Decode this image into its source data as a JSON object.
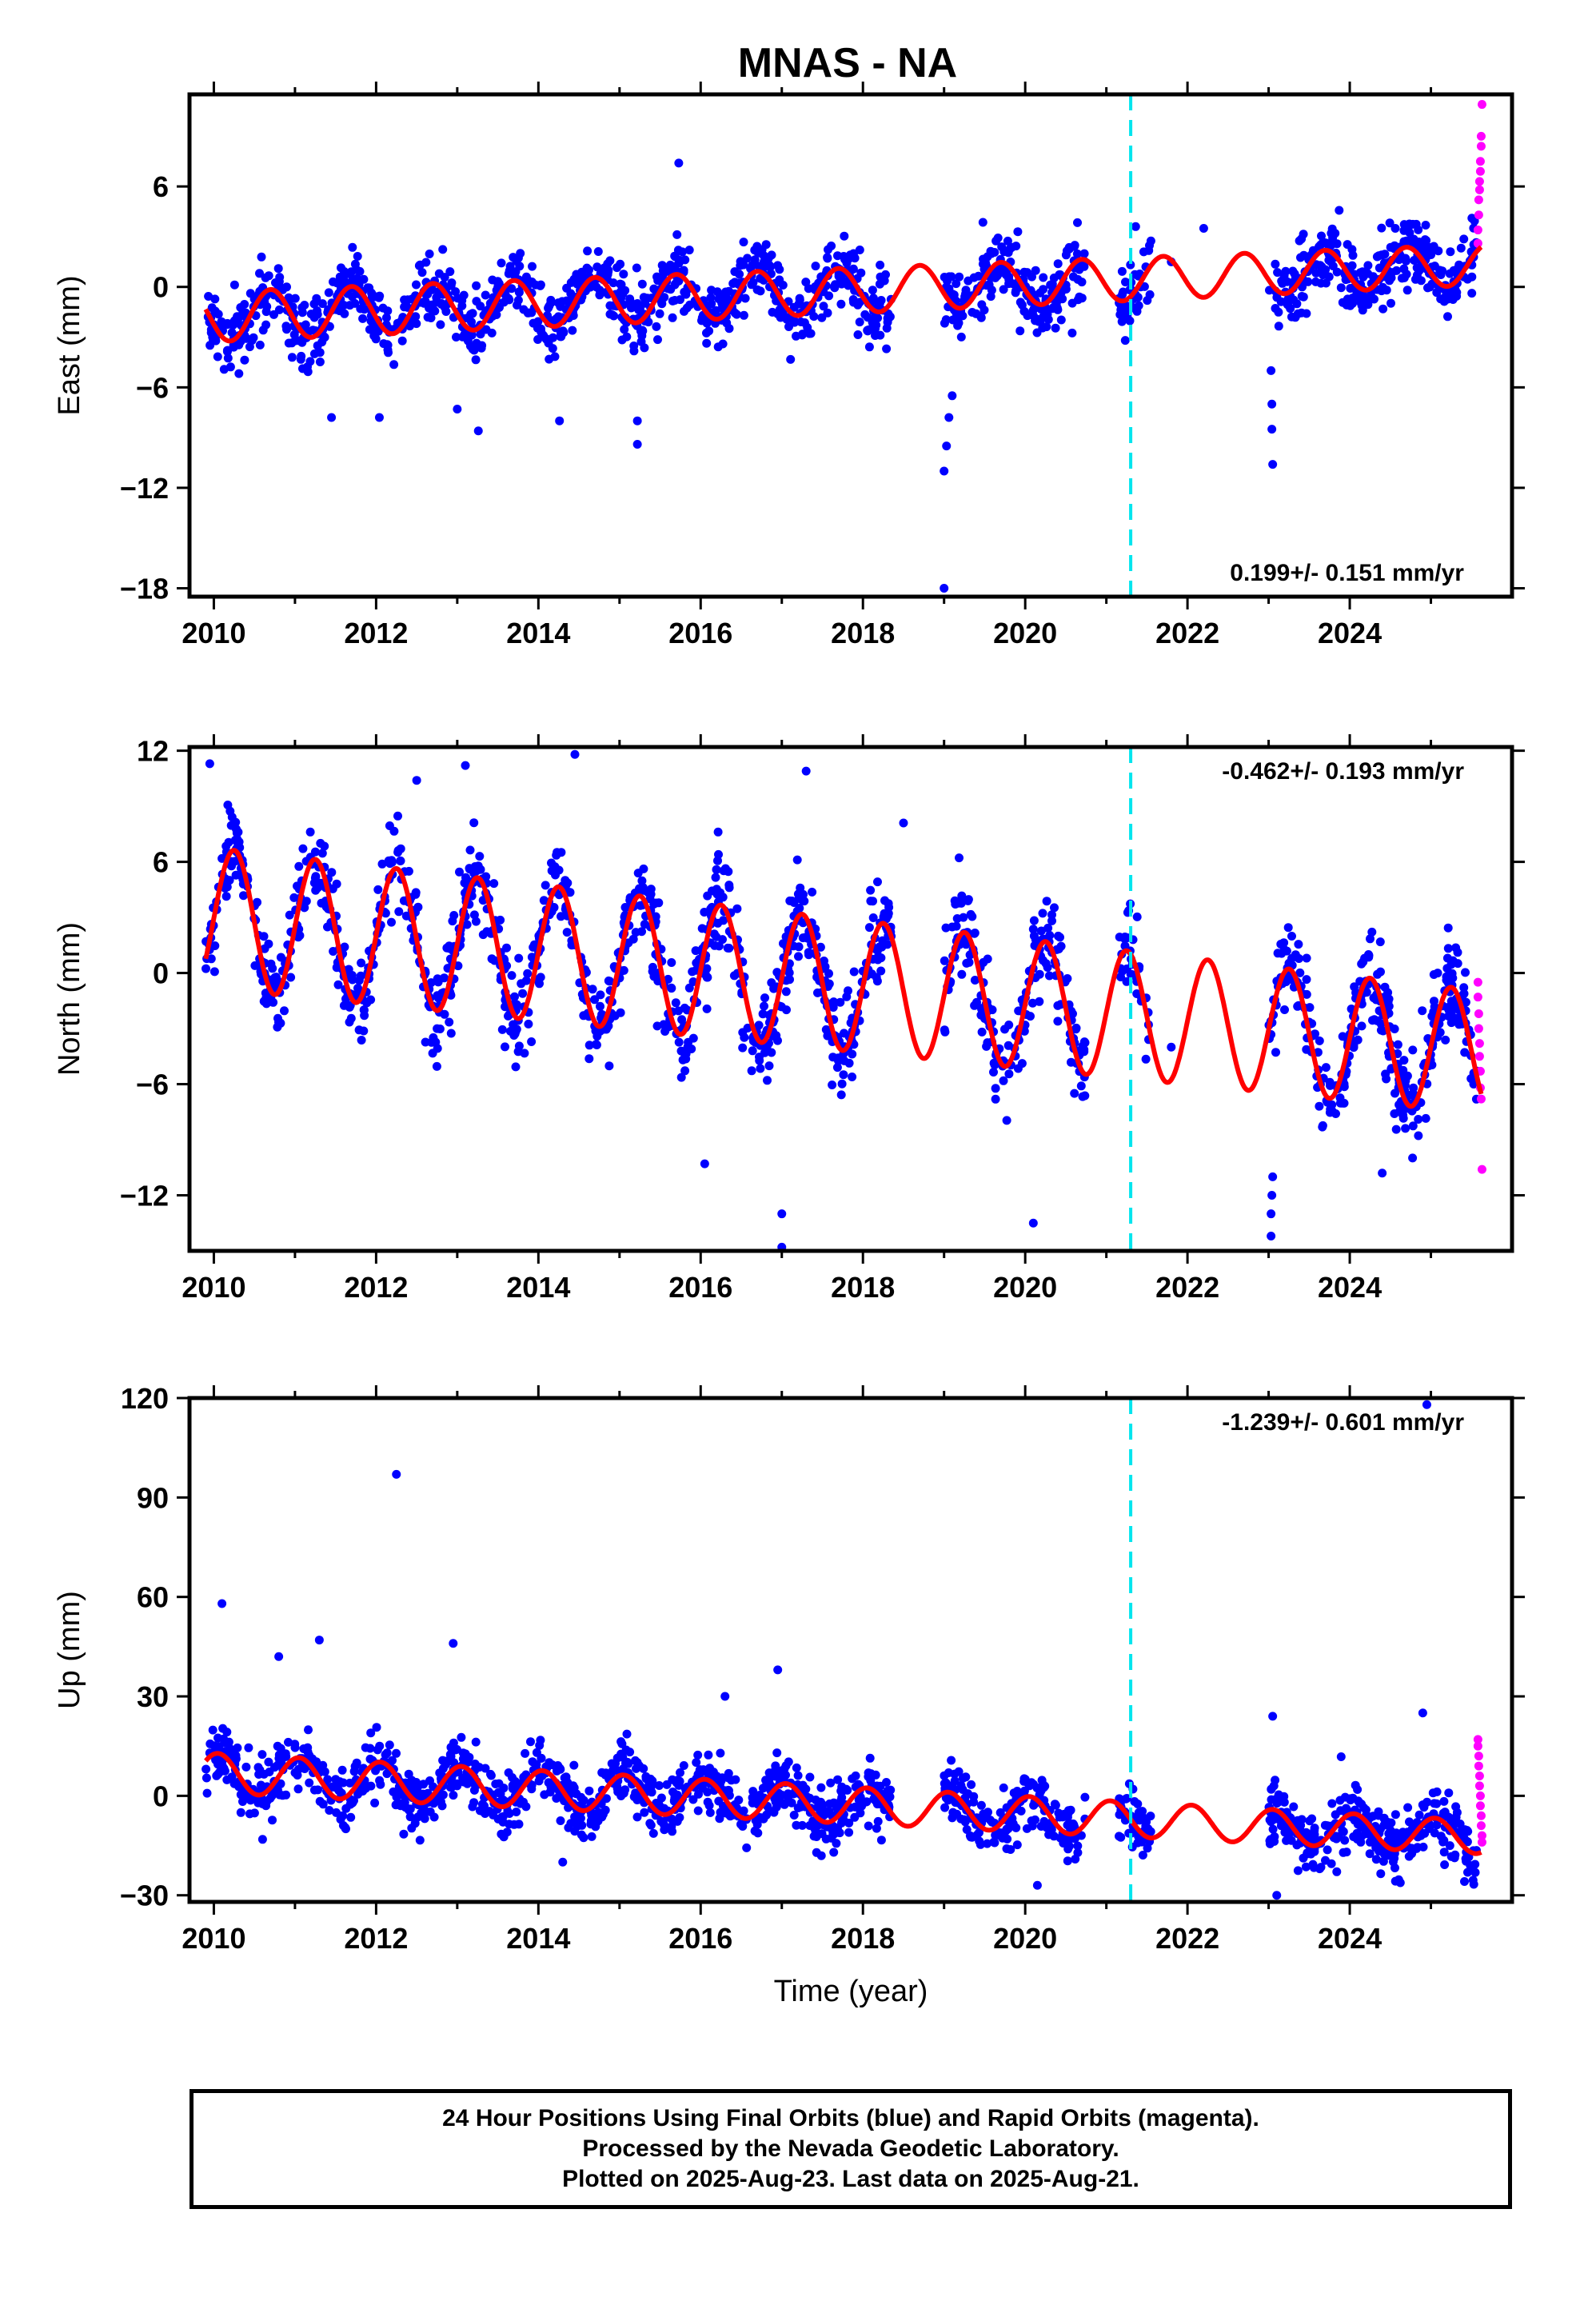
{
  "page": {
    "title": "MNAS - NA",
    "footer_lines": [
      "24 Hour Positions Using Final Orbits (blue) and Rapid Orbits (magenta).",
      "Processed by the Nevada Geodetic Laboratory.",
      "Plotted on 2025-Aug-23. Last data on 2025-Aug-21."
    ]
  },
  "colors": {
    "final_orbits": "#0000ff",
    "rapid_orbits": "#ff00ff",
    "model_fit": "#ff0000",
    "equipment_change": "#00e5ee",
    "axes": "#000000"
  },
  "chart_data": [
    {
      "type": "scatter",
      "component": "east",
      "ylabel": "East (mm)",
      "xlabel": "",
      "xlim": [
        2009.7,
        2026.0
      ],
      "ylim": [
        -18.5,
        11.5
      ],
      "xticks": [
        2010,
        2012,
        2014,
        2016,
        2018,
        2020,
        2022,
        2024
      ],
      "yticks": [
        -18,
        -12,
        -6,
        0,
        6
      ],
      "ytick_labels": [
        "−18",
        "−12",
        "−6",
        "0",
        "6"
      ],
      "rate_label": "0.199+/- 0.151 mm/yr",
      "rate_position": "bottom-right",
      "vline_x": 2021.3,
      "model": {
        "offset": -1.8,
        "trend": 0.199,
        "t0": 2009.9,
        "amp_start": 1.5,
        "amp_end": 1.2,
        "phase": 2010.7,
        "extra_offset_after": 0.0
      },
      "data_gaps": [
        [
          2018.35,
          2019.0
        ],
        [
          2020.75,
          2021.15
        ],
        [
          2021.55,
          2023.0
        ]
      ],
      "scatter_sd": 1.0,
      "n_points": 1500,
      "outliers": [
        {
          "x": 2015.73,
          "y": 7.4
        },
        {
          "x": 2013.26,
          "y": -8.6
        },
        {
          "x": 2014.26,
          "y": -8.0
        },
        {
          "x": 2015.22,
          "y": -9.4
        },
        {
          "x": 2015.22,
          "y": -8.0
        },
        {
          "x": 2011.45,
          "y": -7.8
        },
        {
          "x": 2012.04,
          "y": -7.8
        },
        {
          "x": 2013.0,
          "y": -7.3
        },
        {
          "x": 2019.0,
          "y": -18.0
        },
        {
          "x": 2019.0,
          "y": -11.0
        },
        {
          "x": 2019.03,
          "y": -9.5
        },
        {
          "x": 2019.06,
          "y": -7.8
        },
        {
          "x": 2019.1,
          "y": -6.5
        },
        {
          "x": 2023.03,
          "y": -5.0
        },
        {
          "x": 2023.04,
          "y": -7.0
        },
        {
          "x": 2023.04,
          "y": -8.5
        },
        {
          "x": 2023.05,
          "y": -10.6
        },
        {
          "x": 2022.2,
          "y": 3.5
        },
        {
          "x": 2021.8,
          "y": 1.5
        }
      ],
      "rapid_points": [
        {
          "x": 2025.58,
          "y": 2.6
        },
        {
          "x": 2025.58,
          "y": 3.4
        },
        {
          "x": 2025.59,
          "y": 4.3
        },
        {
          "x": 2025.59,
          "y": 5.2
        },
        {
          "x": 2025.6,
          "y": 5.8
        },
        {
          "x": 2025.6,
          "y": 6.3
        },
        {
          "x": 2025.61,
          "y": 6.9
        },
        {
          "x": 2025.61,
          "y": 7.5
        },
        {
          "x": 2025.62,
          "y": 8.4
        },
        {
          "x": 2025.62,
          "y": 9.0
        },
        {
          "x": 2025.63,
          "y": 10.9
        }
      ]
    },
    {
      "type": "scatter",
      "component": "north",
      "ylabel": "North (mm)",
      "xlabel": "",
      "xlim": [
        2009.7,
        2026.0
      ],
      "ylim": [
        -15.0,
        12.2
      ],
      "xticks": [
        2010,
        2012,
        2014,
        2016,
        2018,
        2020,
        2022,
        2024
      ],
      "yticks": [
        -12,
        -6,
        0,
        6,
        12
      ],
      "ytick_labels": [
        "−12",
        "−6",
        "0",
        "6",
        "12"
      ],
      "rate_label": "-0.462+/- 0.193 mm/yr",
      "rate_position": "top-right",
      "vline_x": 2021.3,
      "model": {
        "offset": 3.0,
        "trend": -0.462,
        "t0": 2009.9,
        "amp_start": 3.8,
        "amp_end": 3.3,
        "phase": 2010.25,
        "extra_offset_after": 0.0
      },
      "data_gaps": [
        [
          2018.35,
          2019.0
        ],
        [
          2020.75,
          2021.15
        ],
        [
          2021.55,
          2023.0
        ]
      ],
      "scatter_sd": 1.2,
      "n_points": 1500,
      "outliers": [
        {
          "x": 2009.95,
          "y": 11.3
        },
        {
          "x": 2014.45,
          "y": 11.8
        },
        {
          "x": 2013.1,
          "y": 11.2
        },
        {
          "x": 2017.3,
          "y": 10.9
        },
        {
          "x": 2012.5,
          "y": 10.4
        },
        {
          "x": 2017.0,
          "y": -14.8
        },
        {
          "x": 2017.0,
          "y": -13.0
        },
        {
          "x": 2020.1,
          "y": -13.5
        },
        {
          "x": 2016.05,
          "y": -10.3
        },
        {
          "x": 2023.03,
          "y": -14.2
        },
        {
          "x": 2023.03,
          "y": -13.0
        },
        {
          "x": 2023.04,
          "y": -12.0
        },
        {
          "x": 2023.05,
          "y": -11.0
        },
        {
          "x": 2018.5,
          "y": 8.1
        },
        {
          "x": 2021.8,
          "y": -4.0
        },
        {
          "x": 2024.4,
          "y": -10.8
        }
      ],
      "rapid_points": [
        {
          "x": 2025.58,
          "y": -0.5
        },
        {
          "x": 2025.58,
          "y": -1.3
        },
        {
          "x": 2025.59,
          "y": -2.2
        },
        {
          "x": 2025.59,
          "y": -3.0
        },
        {
          "x": 2025.6,
          "y": -3.8
        },
        {
          "x": 2025.6,
          "y": -4.5
        },
        {
          "x": 2025.61,
          "y": -5.3
        },
        {
          "x": 2025.61,
          "y": -6.2
        },
        {
          "x": 2025.62,
          "y": -6.8
        },
        {
          "x": 2025.63,
          "y": -10.6
        }
      ]
    },
    {
      "type": "scatter",
      "component": "up",
      "ylabel": "Up (mm)",
      "xlabel": "Time (year)",
      "xlim": [
        2009.7,
        2026.0
      ],
      "ylim": [
        -32,
        120
      ],
      "xticks": [
        2010,
        2012,
        2014,
        2016,
        2018,
        2020,
        2022,
        2024
      ],
      "yticks": [
        -30,
        0,
        30,
        60,
        90,
        120
      ],
      "ytick_labels": [
        "−30",
        "0",
        "30",
        "60",
        "90",
        "120"
      ],
      "rate_label": "-1.239+/- 0.601 mm/yr",
      "rate_position": "top-right",
      "vline_x": 2021.3,
      "model": {
        "offset": 7.0,
        "trend": -1.239,
        "t0": 2009.9,
        "amp_start": 6.0,
        "amp_end": 5.0,
        "phase": 2011.05,
        "extra_offset_after": 0.0
      },
      "data_gaps": [
        [
          2018.35,
          2019.0
        ],
        [
          2020.75,
          2021.15
        ],
        [
          2021.55,
          2023.0
        ]
      ],
      "scatter_sd": 4.5,
      "n_points": 1500,
      "outliers": [
        {
          "x": 2010.1,
          "y": 58
        },
        {
          "x": 2012.25,
          "y": 97
        },
        {
          "x": 2011.3,
          "y": 47
        },
        {
          "x": 2012.95,
          "y": 46
        },
        {
          "x": 2010.8,
          "y": 42
        },
        {
          "x": 2016.95,
          "y": 38
        },
        {
          "x": 2024.95,
          "y": 118
        },
        {
          "x": 2024.9,
          "y": 25
        },
        {
          "x": 2014.3,
          "y": -20
        },
        {
          "x": 2023.1,
          "y": -30
        },
        {
          "x": 2023.05,
          "y": 24
        },
        {
          "x": 2016.3,
          "y": 30
        },
        {
          "x": 2020.15,
          "y": -27
        }
      ],
      "rapid_points": [
        {
          "x": 2025.58,
          "y": 17
        },
        {
          "x": 2025.58,
          "y": 15
        },
        {
          "x": 2025.59,
          "y": 12
        },
        {
          "x": 2025.59,
          "y": 9
        },
        {
          "x": 2025.6,
          "y": 6
        },
        {
          "x": 2025.6,
          "y": 3
        },
        {
          "x": 2025.61,
          "y": 0
        },
        {
          "x": 2025.61,
          "y": -3
        },
        {
          "x": 2025.62,
          "y": -6
        },
        {
          "x": 2025.62,
          "y": -9
        },
        {
          "x": 2025.63,
          "y": -12
        },
        {
          "x": 2025.63,
          "y": -14
        }
      ]
    }
  ]
}
